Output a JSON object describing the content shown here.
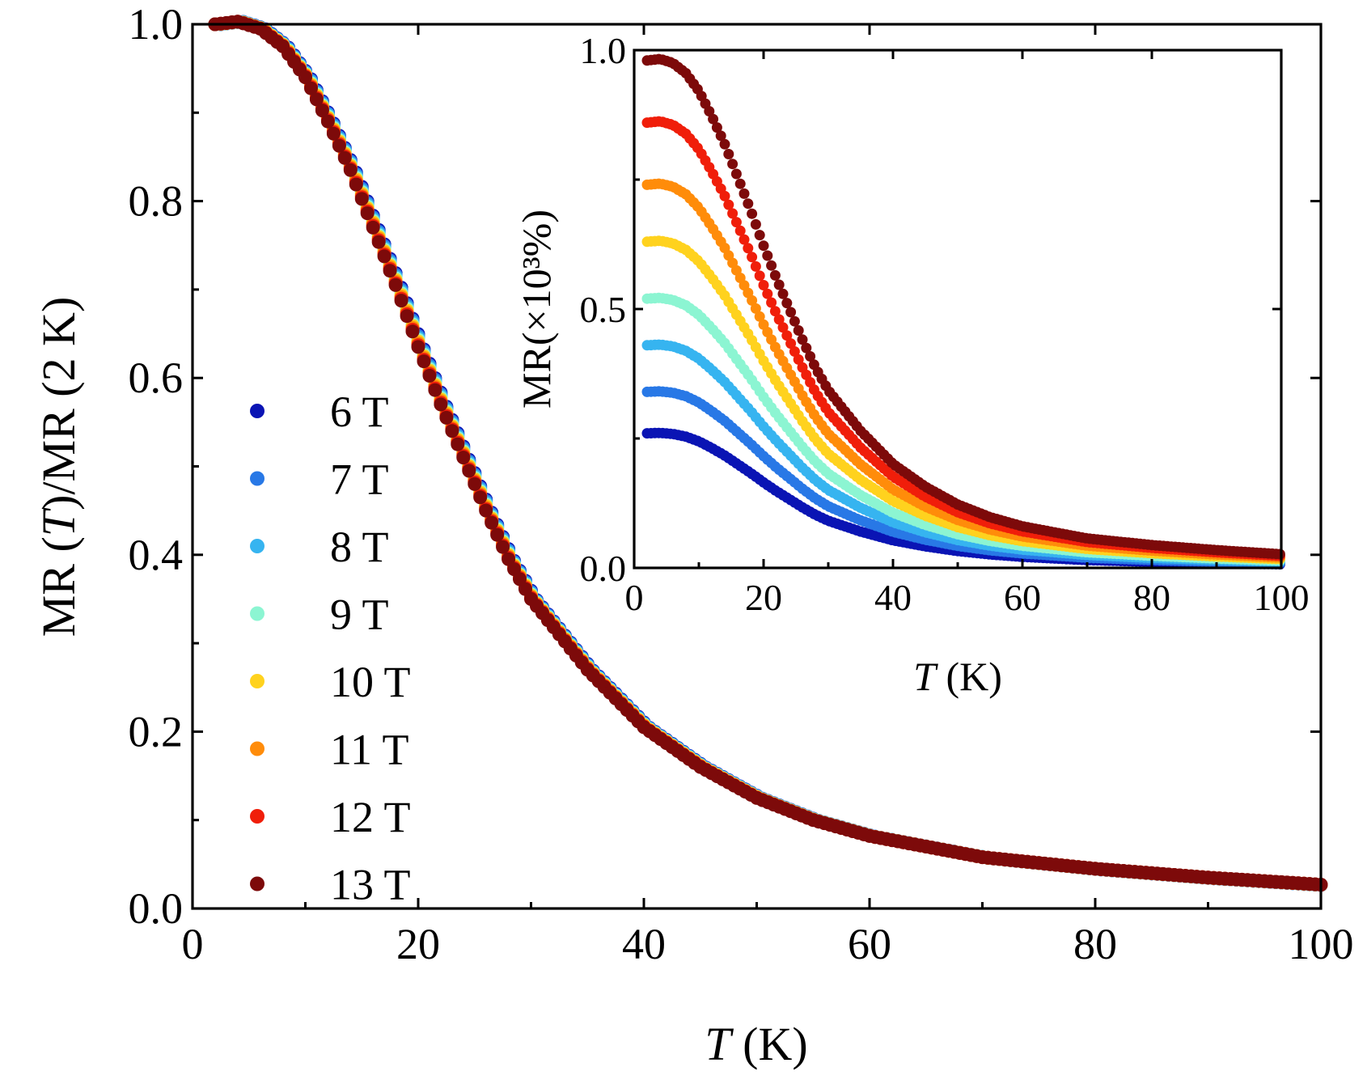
{
  "chart_data": [
    {
      "id": "main",
      "type": "scatter",
      "title": "",
      "xlabel_italic": "T",
      "xlabel_unit": " (K)",
      "ylabel_parts": [
        "MR (",
        "T",
        ")/MR (2 K)"
      ],
      "xlim": [
        0,
        100
      ],
      "ylim": [
        0,
        1.0
      ],
      "xticks": [
        "0",
        "20",
        "40",
        "60",
        "80",
        "100"
      ],
      "yticks": [
        "0.0",
        "0.2",
        "0.4",
        "0.6",
        "0.8",
        "1.0"
      ],
      "legend_position": "left-middle",
      "x_range": [
        2,
        100
      ],
      "curve": {
        "T": [
          2,
          4,
          6,
          8,
          10,
          12,
          14,
          16,
          18,
          20,
          22,
          24,
          26,
          28,
          30,
          35,
          40,
          45,
          50,
          55,
          60,
          65,
          70,
          80,
          90,
          100
        ],
        "val": [
          1.0,
          1.003,
          0.995,
          0.975,
          0.94,
          0.89,
          0.835,
          0.77,
          0.705,
          0.635,
          0.57,
          0.51,
          0.45,
          0.395,
          0.35,
          0.27,
          0.205,
          0.16,
          0.125,
          0.1,
          0.082,
          0.07,
          0.058,
          0.045,
          0.035,
          0.027
        ]
      },
      "series": [
        {
          "name": "6 T",
          "color": "#0a14b4"
        },
        {
          "name": "7 T",
          "color": "#2878e6"
        },
        {
          "name": "8 T",
          "color": "#36b4f0"
        },
        {
          "name": "9 T",
          "color": "#8cf5d2"
        },
        {
          "name": "10 T",
          "color": "#ffd21e"
        },
        {
          "name": "11 T",
          "color": "#ff8c0a"
        },
        {
          "name": "12 T",
          "color": "#f01e0a"
        },
        {
          "name": "13 T",
          "color": "#7d0a0a"
        }
      ]
    },
    {
      "id": "inset",
      "type": "scatter",
      "title": "",
      "xlabel_italic": "T",
      "xlabel_unit": " (K)",
      "ylabel": "MR(×10³%)",
      "xlim": [
        0,
        100
      ],
      "ylim": [
        0,
        1.0
      ],
      "xticks": [
        "0",
        "20",
        "40",
        "60",
        "80",
        "100"
      ],
      "yticks": [
        "0.0",
        "0.5",
        "1.0"
      ],
      "x_range": [
        2,
        100
      ],
      "series": [
        {
          "name": "6 T",
          "color": "#0a14b4",
          "mr_2K": 0.26
        },
        {
          "name": "7 T",
          "color": "#2878e6",
          "mr_2K": 0.34
        },
        {
          "name": "8 T",
          "color": "#36b4f0",
          "mr_2K": 0.43
        },
        {
          "name": "9 T",
          "color": "#8cf5d2",
          "mr_2K": 0.52
        },
        {
          "name": "10 T",
          "color": "#ffd21e",
          "mr_2K": 0.63
        },
        {
          "name": "11 T",
          "color": "#ff8c0a",
          "mr_2K": 0.74
        },
        {
          "name": "12 T",
          "color": "#f01e0a",
          "mr_2K": 0.86
        },
        {
          "name": "13 T",
          "color": "#7d0a0a",
          "mr_2K": 0.98
        }
      ]
    }
  ]
}
